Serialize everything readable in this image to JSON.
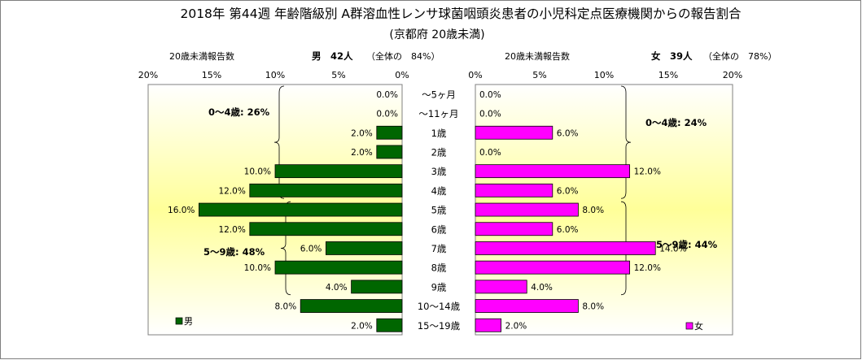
{
  "chart_data": {
    "type": "bar",
    "title": "2018年 第44週 年齢階級別 A群溶血性レンサ球菌咽頭炎患者の小児科定点医療機関からの報告割合",
    "subtitle": "(京都府 20歳未満)",
    "categories": [
      "～5ヶ月",
      "～11ヶ月",
      "1歳",
      "2歳",
      "3歳",
      "4歳",
      "5歳",
      "6歳",
      "7歳",
      "8歳",
      "9歳",
      "10～14歳",
      "15～19歳"
    ],
    "xlim": [
      0,
      20
    ],
    "x_ticks": [
      "0%",
      "5%",
      "10%",
      "15%",
      "20%"
    ],
    "series": [
      {
        "name": "男",
        "side": "left",
        "color": "#006600",
        "header_label": "20歳未満報告数",
        "header_main": "男　42人",
        "header_share": "（全体の　84%）",
        "values": [
          0.0,
          0.0,
          2.0,
          2.0,
          10.0,
          12.0,
          16.0,
          12.0,
          6.0,
          10.0,
          4.0,
          8.0,
          2.0
        ],
        "labels": [
          "0.0%",
          "0.0%",
          "2.0%",
          "2.0%",
          "10.0%",
          "12.0%",
          "16.0%",
          "12.0%",
          "6.0%",
          "10.0%",
          "4.0%",
          "8.0%",
          "2.0%"
        ],
        "brackets": [
          {
            "from": 0,
            "to": 5,
            "label": "0～4歳: 26%"
          },
          {
            "from": 6,
            "to": 10,
            "label": "5～9歳: 48%"
          }
        ]
      },
      {
        "name": "女",
        "side": "right",
        "color": "#ff00ff",
        "header_label": "20歳未満報告数",
        "header_main": "女　39人",
        "header_share": "（全体の　78%）",
        "values": [
          0.0,
          0.0,
          6.0,
          0.0,
          12.0,
          6.0,
          8.0,
          6.0,
          14.0,
          12.0,
          4.0,
          8.0,
          2.0
        ],
        "labels": [
          "0.0%",
          "0.0%",
          "6.0%",
          "0.0%",
          "12.0%",
          "6.0%",
          "8.0%",
          "6.0%",
          "14.0%",
          "12.0%",
          "4.0%",
          "8.0%",
          "2.0%"
        ],
        "brackets": [
          {
            "from": 0,
            "to": 5,
            "label": "0～4歳: 24%"
          },
          {
            "from": 6,
            "to": 10,
            "label": "5～9歳: 44%"
          }
        ]
      }
    ],
    "legend": "bottom-left / bottom-right",
    "grid": false
  }
}
